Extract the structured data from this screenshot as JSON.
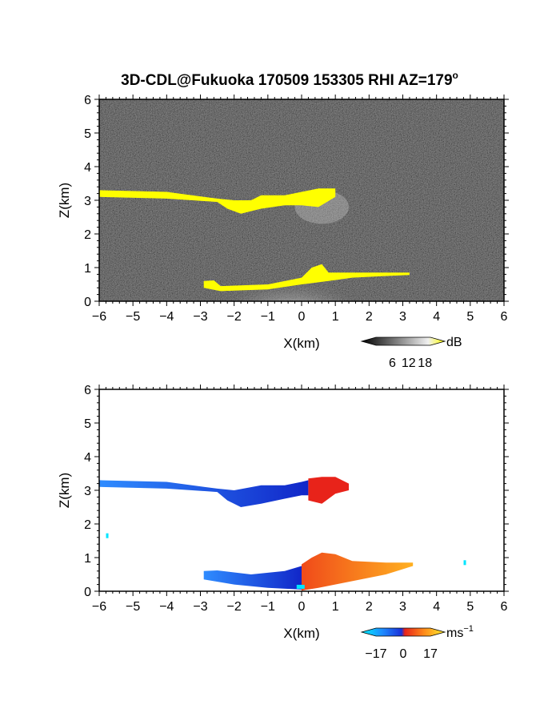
{
  "title": "3D-CDL@Fukuoka 170509 153305 RHI AZ=179",
  "title_superscript": "o",
  "colors": {
    "background": "#ffffff",
    "echo_background": "#1a1a1a",
    "echo_highlight": "#ffff00",
    "velocity_toward": "#1a3fe0",
    "velocity_away": "#e8231a",
    "velocity_low": "#00e5ff"
  },
  "chart_data": [
    {
      "type": "heatmap",
      "panel": "reflectivity",
      "xlabel": "X(km)",
      "ylabel": "Z(km)",
      "xlim": [
        -6,
        6
      ],
      "ylim": [
        0,
        6
      ],
      "xticks": [
        "−6",
        "−5",
        "−4",
        "−3",
        "−2",
        "−1",
        "0",
        "1",
        "2",
        "3",
        "4",
        "5",
        "6"
      ],
      "yticks": [
        "0",
        "1",
        "2",
        "3",
        "4",
        "5",
        "6"
      ],
      "grid": false,
      "colorbar": {
        "unit": "dB",
        "ticks": [
          "6",
          "12",
          "18"
        ],
        "range": [
          0,
          20
        ]
      },
      "layers": [
        {
          "name": "upper cloud layer (high dB)",
          "color": "yellow",
          "top": [
            [
              -6,
              3.3
            ],
            [
              -4,
              3.25
            ],
            [
              -2.5,
              3.05
            ],
            [
              -2,
              3.0
            ],
            [
              -1.5,
              3.0
            ],
            [
              -1.2,
              3.15
            ],
            [
              -0.5,
              3.15
            ],
            [
              0,
              3.25
            ],
            [
              0.5,
              3.35
            ],
            [
              1.0,
              3.35
            ]
          ],
          "bottom": [
            [
              1.0,
              3.1
            ],
            [
              0.5,
              2.8
            ],
            [
              0,
              2.85
            ],
            [
              -0.5,
              2.85
            ],
            [
              -1.2,
              2.75
            ],
            [
              -1.8,
              2.6
            ],
            [
              -2.2,
              2.75
            ],
            [
              -2.5,
              2.95
            ],
            [
              -4,
              3.05
            ],
            [
              -6,
              3.1
            ]
          ]
        },
        {
          "name": "low-level echo (high dB)",
          "color": "yellow",
          "top": [
            [
              -2.9,
              0.6
            ],
            [
              -2.6,
              0.62
            ],
            [
              -2.4,
              0.45
            ],
            [
              -1.0,
              0.5
            ],
            [
              0,
              0.7
            ],
            [
              0.3,
              1.0
            ],
            [
              0.6,
              1.1
            ],
            [
              0.8,
              0.85
            ],
            [
              1.5,
              0.85
            ],
            [
              2.5,
              0.85
            ],
            [
              3.2,
              0.85
            ]
          ],
          "bottom": [
            [
              3.2,
              0.78
            ],
            [
              2.5,
              0.75
            ],
            [
              1.5,
              0.7
            ],
            [
              0.8,
              0.6
            ],
            [
              0,
              0.5
            ],
            [
              -1.0,
              0.35
            ],
            [
              -2.4,
              0.3
            ],
            [
              -2.9,
              0.4
            ]
          ]
        }
      ]
    },
    {
      "type": "heatmap",
      "panel": "velocity",
      "xlabel": "X(km)",
      "ylabel": "Z(km)",
      "xlim": [
        -6,
        6
      ],
      "ylim": [
        0,
        6
      ],
      "xticks": [
        "−6",
        "−5",
        "−4",
        "−3",
        "−2",
        "−1",
        "0",
        "1",
        "2",
        "3",
        "4",
        "5",
        "6"
      ],
      "yticks": [
        "0",
        "1",
        "2",
        "3",
        "4",
        "5",
        "6"
      ],
      "grid": false,
      "colorbar": {
        "unit": "ms",
        "unit_superscript": "−1",
        "ticks": [
          "−17",
          "0",
          "17"
        ],
        "range": [
          -17,
          17
        ]
      },
      "layers": [
        {
          "name": "upper layer, negative velocity",
          "color": "blue",
          "top": [
            [
              -6,
              3.3
            ],
            [
              -4,
              3.25
            ],
            [
              -2.5,
              3.05
            ],
            [
              -2,
              3.0
            ],
            [
              -1.2,
              3.15
            ],
            [
              -0.5,
              3.15
            ],
            [
              0,
              3.25
            ],
            [
              0.2,
              3.3
            ]
          ],
          "bottom": [
            [
              0.2,
              2.85
            ],
            [
              0,
              2.85
            ],
            [
              -0.5,
              2.75
            ],
            [
              -1.2,
              2.6
            ],
            [
              -1.8,
              2.5
            ],
            [
              -2.2,
              2.7
            ],
            [
              -2.5,
              2.95
            ],
            [
              -4,
              3.05
            ],
            [
              -6,
              3.1
            ]
          ]
        },
        {
          "name": "upper layer, positive velocity",
          "color": "red",
          "top": [
            [
              0.2,
              3.35
            ],
            [
              0.6,
              3.4
            ],
            [
              1.0,
              3.4
            ],
            [
              1.4,
              3.2
            ]
          ],
          "bottom": [
            [
              1.4,
              3.0
            ],
            [
              1.0,
              2.9
            ],
            [
              0.6,
              2.6
            ],
            [
              0.2,
              2.7
            ]
          ]
        },
        {
          "name": "low-level echo, negative velocity",
          "color": "blue",
          "top": [
            [
              -2.9,
              0.6
            ],
            [
              -2.5,
              0.62
            ],
            [
              -1.5,
              0.5
            ],
            [
              -0.5,
              0.6
            ],
            [
              0,
              0.75
            ]
          ],
          "bottom": [
            [
              0,
              0.05
            ],
            [
              -1.0,
              0.1
            ],
            [
              -2.0,
              0.2
            ],
            [
              -2.9,
              0.35
            ]
          ]
        },
        {
          "name": "low-level echo, positive velocity",
          "color": "orange",
          "top": [
            [
              0,
              0.8
            ],
            [
              0.3,
              1.0
            ],
            [
              0.6,
              1.15
            ],
            [
              1.0,
              1.1
            ],
            [
              1.5,
              0.9
            ],
            [
              2.5,
              0.85
            ],
            [
              3.3,
              0.85
            ]
          ],
          "bottom": [
            [
              3.3,
              0.75
            ],
            [
              2.5,
              0.5
            ],
            [
              1.5,
              0.3
            ],
            [
              0.5,
              0.1
            ],
            [
              0,
              0.02
            ]
          ]
        }
      ]
    }
  ]
}
